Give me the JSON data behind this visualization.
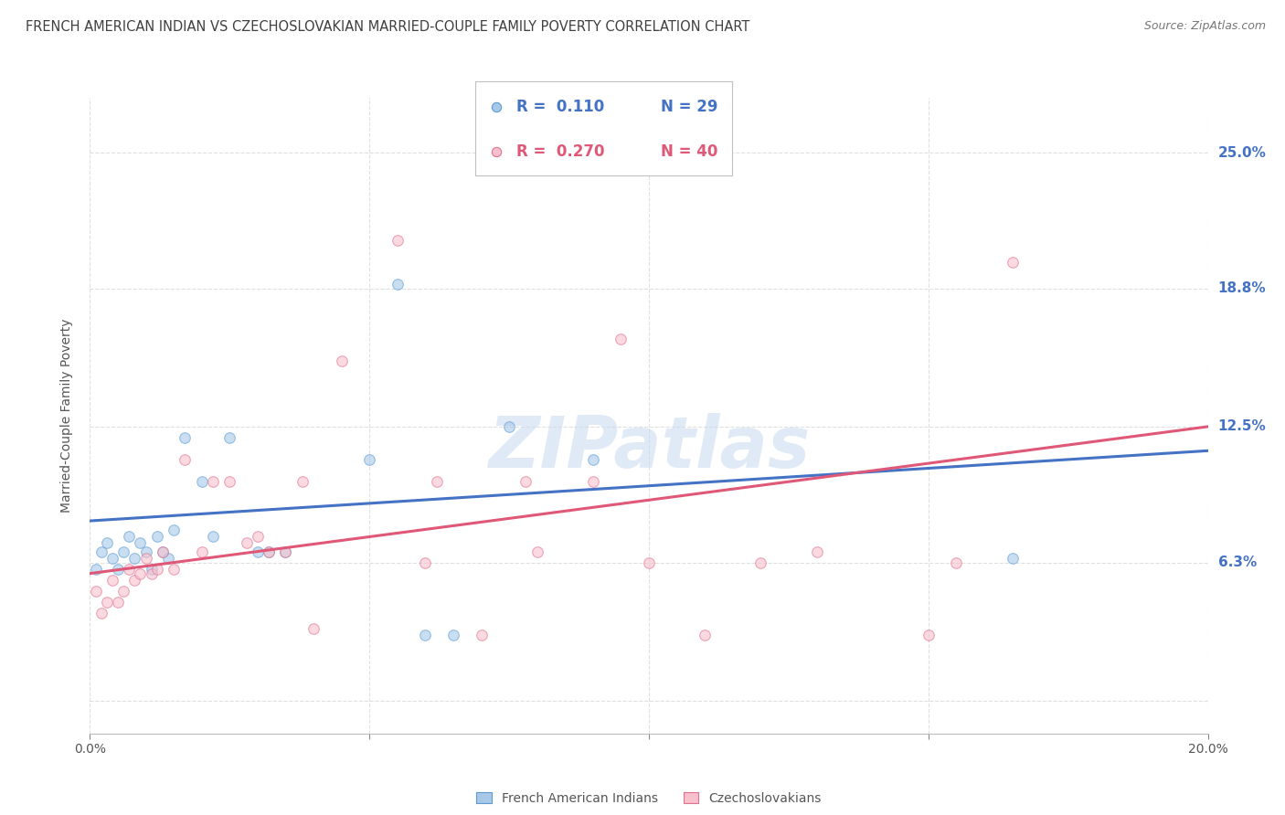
{
  "title": "FRENCH AMERICAN INDIAN VS CZECHOSLOVAKIAN MARRIED-COUPLE FAMILY POVERTY CORRELATION CHART",
  "source": "Source: ZipAtlas.com",
  "ylabel": "Married-Couple Family Poverty",
  "xlim": [
    0.0,
    0.2
  ],
  "ylim": [
    -0.015,
    0.275
  ],
  "yticks": [
    0.0,
    0.063,
    0.125,
    0.188,
    0.25
  ],
  "ytick_labels": [
    "",
    "6.3%",
    "12.5%",
    "18.8%",
    "25.0%"
  ],
  "xticks": [
    0.0,
    0.05,
    0.1,
    0.15,
    0.2
  ],
  "xtick_labels": [
    "0.0%",
    "",
    "",
    "",
    "20.0%"
  ],
  "legend_blue_r": "R =  0.110",
  "legend_blue_n": "N = 29",
  "legend_pink_r": "R =  0.270",
  "legend_pink_n": "N = 40",
  "legend_blue_label": "French American Indians",
  "legend_pink_label": "Czechoslovakians",
  "watermark": "ZIPatlas",
  "blue_color": "#a8c8e8",
  "pink_color": "#f8c0cc",
  "blue_edge_color": "#5b9bd5",
  "pink_edge_color": "#e07090",
  "blue_line_color": "#4472c4",
  "pink_line_color": "#e05878",
  "blue_scatter": [
    [
      0.001,
      0.06
    ],
    [
      0.002,
      0.068
    ],
    [
      0.003,
      0.072
    ],
    [
      0.004,
      0.065
    ],
    [
      0.005,
      0.06
    ],
    [
      0.006,
      0.068
    ],
    [
      0.007,
      0.075
    ],
    [
      0.008,
      0.065
    ],
    [
      0.009,
      0.072
    ],
    [
      0.01,
      0.068
    ],
    [
      0.011,
      0.06
    ],
    [
      0.012,
      0.075
    ],
    [
      0.013,
      0.068
    ],
    [
      0.014,
      0.065
    ],
    [
      0.015,
      0.078
    ],
    [
      0.017,
      0.12
    ],
    [
      0.02,
      0.1
    ],
    [
      0.022,
      0.075
    ],
    [
      0.025,
      0.12
    ],
    [
      0.03,
      0.068
    ],
    [
      0.032,
      0.068
    ],
    [
      0.035,
      0.068
    ],
    [
      0.05,
      0.11
    ],
    [
      0.055,
      0.19
    ],
    [
      0.06,
      0.03
    ],
    [
      0.065,
      0.03
    ],
    [
      0.075,
      0.125
    ],
    [
      0.09,
      0.11
    ],
    [
      0.165,
      0.065
    ]
  ],
  "pink_scatter": [
    [
      0.001,
      0.05
    ],
    [
      0.002,
      0.04
    ],
    [
      0.003,
      0.045
    ],
    [
      0.004,
      0.055
    ],
    [
      0.005,
      0.045
    ],
    [
      0.006,
      0.05
    ],
    [
      0.007,
      0.06
    ],
    [
      0.008,
      0.055
    ],
    [
      0.009,
      0.058
    ],
    [
      0.01,
      0.065
    ],
    [
      0.011,
      0.058
    ],
    [
      0.012,
      0.06
    ],
    [
      0.013,
      0.068
    ],
    [
      0.015,
      0.06
    ],
    [
      0.017,
      0.11
    ],
    [
      0.02,
      0.068
    ],
    [
      0.022,
      0.1
    ],
    [
      0.025,
      0.1
    ],
    [
      0.028,
      0.072
    ],
    [
      0.03,
      0.075
    ],
    [
      0.032,
      0.068
    ],
    [
      0.035,
      0.068
    ],
    [
      0.038,
      0.1
    ],
    [
      0.04,
      0.033
    ],
    [
      0.045,
      0.155
    ],
    [
      0.055,
      0.21
    ],
    [
      0.06,
      0.063
    ],
    [
      0.062,
      0.1
    ],
    [
      0.07,
      0.03
    ],
    [
      0.078,
      0.1
    ],
    [
      0.08,
      0.068
    ],
    [
      0.09,
      0.1
    ],
    [
      0.095,
      0.165
    ],
    [
      0.1,
      0.063
    ],
    [
      0.11,
      0.03
    ],
    [
      0.12,
      0.063
    ],
    [
      0.13,
      0.068
    ],
    [
      0.15,
      0.03
    ],
    [
      0.155,
      0.063
    ],
    [
      0.165,
      0.2
    ]
  ],
  "blue_line_x": [
    0.0,
    0.2
  ],
  "blue_line_y": [
    0.082,
    0.114
  ],
  "pink_line_x": [
    0.0,
    0.2
  ],
  "pink_line_y": [
    0.058,
    0.125
  ],
  "background_color": "#ffffff",
  "grid_color": "#d8d8d8",
  "title_color": "#404040",
  "axis_label_color": "#4472c4",
  "marker_size": 70,
  "marker_alpha": 0.6,
  "title_fontsize": 10.5,
  "source_fontsize": 9,
  "ylabel_fontsize": 10,
  "legend_fontsize": 12
}
